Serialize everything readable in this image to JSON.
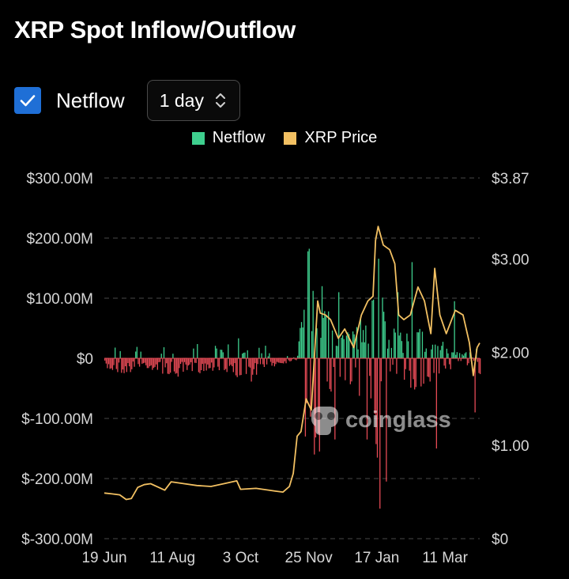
{
  "header": {
    "title": "XRP Spot Inflow/Outflow"
  },
  "controls": {
    "netflow_checkbox_checked": true,
    "netflow_label": "Netflow",
    "interval_value": "1 day"
  },
  "colors": {
    "accent": "#1f6fd6",
    "inflow": "#3ecf8e",
    "outflow": "#e54a55",
    "price": "#f2c062",
    "grid": "#3a3a3a"
  },
  "chart_data": {
    "type": "bar",
    "legend": [
      {
        "name": "Netflow",
        "color": "#3ecf8e"
      },
      {
        "name": "XRP Price",
        "color": "#f2c062"
      }
    ],
    "left_axis": {
      "min": -300,
      "max": 300,
      "unit": "USD millions",
      "ticks": [
        300,
        200,
        100,
        0,
        -100,
        -200,
        -300
      ],
      "tick_labels": [
        "$300.00M",
        "$200.00M",
        "$100.00M",
        "$0",
        "$-100.00M",
        "$-200.00M",
        "$-300.00M"
      ]
    },
    "right_axis": {
      "min": 0,
      "max": 3.87,
      "ticks": [
        3.87,
        3.0,
        2.0,
        1.0,
        0
      ],
      "tick_labels": [
        "$3.87",
        "$3.00",
        "$2.00",
        "$1.00",
        "$0"
      ]
    },
    "x_axis": {
      "start_date": "2024-06-19",
      "end_date": "2025-04-07",
      "ticks": [
        "2024-06-19",
        "2024-08-11",
        "2024-10-03",
        "2024-11-25",
        "2025-01-17",
        "2025-03-11"
      ],
      "tick_labels": [
        "19 Jun",
        "11 Aug",
        "3 Oct",
        "25 Nov",
        "17 Jan",
        "11 Mar"
      ]
    },
    "netflow_keypoints": [
      [
        "2024-06-19",
        -15
      ],
      [
        "2024-07-05",
        -20
      ],
      [
        "2024-07-20",
        -12
      ],
      [
        "2024-08-15",
        -25
      ],
      [
        "2024-09-10",
        -15
      ],
      [
        "2024-10-10",
        -30
      ],
      [
        "2024-10-25",
        -12
      ],
      [
        "2024-11-10",
        -5
      ],
      [
        "2024-11-16",
        5
      ],
      [
        "2024-11-19",
        60
      ],
      [
        "2024-11-23",
        120
      ],
      [
        "2024-11-27",
        180
      ],
      [
        "2024-12-03",
        80
      ],
      [
        "2024-12-10",
        60
      ],
      [
        "2024-12-20",
        30
      ],
      [
        "2025-01-01",
        40
      ],
      [
        "2025-01-15",
        100
      ],
      [
        "2025-01-17",
        160
      ],
      [
        "2025-01-25",
        50
      ],
      [
        "2025-02-05",
        30
      ],
      [
        "2025-02-15",
        45
      ],
      [
        "2025-03-01",
        30
      ],
      [
        "2025-03-15",
        15
      ],
      [
        "2025-03-30",
        10
      ],
      [
        "2025-04-07",
        -25
      ]
    ],
    "netflow_spikes": [
      [
        "2024-07-01",
        12
      ],
      [
        "2024-09-19",
        10
      ],
      [
        "2024-11-24",
        178
      ],
      [
        "2024-11-29",
        -160
      ],
      [
        "2024-12-03",
        -155
      ],
      [
        "2024-12-05",
        120
      ],
      [
        "2024-12-15",
        -135
      ],
      [
        "2024-12-18",
        110
      ],
      [
        "2025-01-09",
        -135
      ],
      [
        "2025-01-19",
        -250
      ],
      [
        "2025-01-24",
        -205
      ],
      [
        "2025-02-02",
        110
      ],
      [
        "2025-02-13",
        160
      ],
      [
        "2025-03-04",
        -150
      ],
      [
        "2025-03-18",
        95
      ],
      [
        "2025-04-03",
        -90
      ]
    ],
    "price_series": [
      [
        "2024-06-19",
        0.49
      ],
      [
        "2024-06-25",
        0.48
      ],
      [
        "2024-07-01",
        0.47
      ],
      [
        "2024-07-06",
        0.42
      ],
      [
        "2024-07-10",
        0.43
      ],
      [
        "2024-07-15",
        0.55
      ],
      [
        "2024-07-20",
        0.58
      ],
      [
        "2024-07-25",
        0.59
      ],
      [
        "2024-08-05",
        0.52
      ],
      [
        "2024-08-10",
        0.61
      ],
      [
        "2024-08-20",
        0.59
      ],
      [
        "2024-08-30",
        0.57
      ],
      [
        "2024-09-10",
        0.56
      ],
      [
        "2024-09-20",
        0.59
      ],
      [
        "2024-09-30",
        0.62
      ],
      [
        "2024-10-03",
        0.53
      ],
      [
        "2024-10-15",
        0.54
      ],
      [
        "2024-10-30",
        0.51
      ],
      [
        "2024-11-05",
        0.5
      ],
      [
        "2024-11-10",
        0.56
      ],
      [
        "2024-11-13",
        0.7
      ],
      [
        "2024-11-16",
        1.1
      ],
      [
        "2024-11-19",
        1.15
      ],
      [
        "2024-11-23",
        1.5
      ],
      [
        "2024-11-27",
        1.38
      ],
      [
        "2024-12-02",
        2.55
      ],
      [
        "2024-12-04",
        2.42
      ],
      [
        "2024-12-08",
        2.4
      ],
      [
        "2024-12-12",
        2.35
      ],
      [
        "2024-12-18",
        2.15
      ],
      [
        "2024-12-23",
        2.25
      ],
      [
        "2024-12-30",
        2.05
      ],
      [
        "2025-01-05",
        2.4
      ],
      [
        "2025-01-10",
        2.55
      ],
      [
        "2025-01-14",
        2.6
      ],
      [
        "2025-01-16",
        3.2
      ],
      [
        "2025-01-18",
        3.35
      ],
      [
        "2025-01-22",
        3.15
      ],
      [
        "2025-01-27",
        3.1
      ],
      [
        "2025-01-31",
        2.95
      ],
      [
        "2025-02-03",
        2.4
      ],
      [
        "2025-02-07",
        2.35
      ],
      [
        "2025-02-12",
        2.4
      ],
      [
        "2025-02-18",
        2.7
      ],
      [
        "2025-02-23",
        2.55
      ],
      [
        "2025-02-28",
        2.2
      ],
      [
        "2025-03-03",
        2.9
      ],
      [
        "2025-03-07",
        2.4
      ],
      [
        "2025-03-12",
        2.2
      ],
      [
        "2025-03-19",
        2.45
      ],
      [
        "2025-03-25",
        2.4
      ],
      [
        "2025-03-30",
        2.1
      ],
      [
        "2025-04-02",
        1.75
      ],
      [
        "2025-04-05",
        2.05
      ],
      [
        "2025-04-07",
        2.1
      ]
    ]
  },
  "watermark": {
    "text": "coinglass"
  }
}
